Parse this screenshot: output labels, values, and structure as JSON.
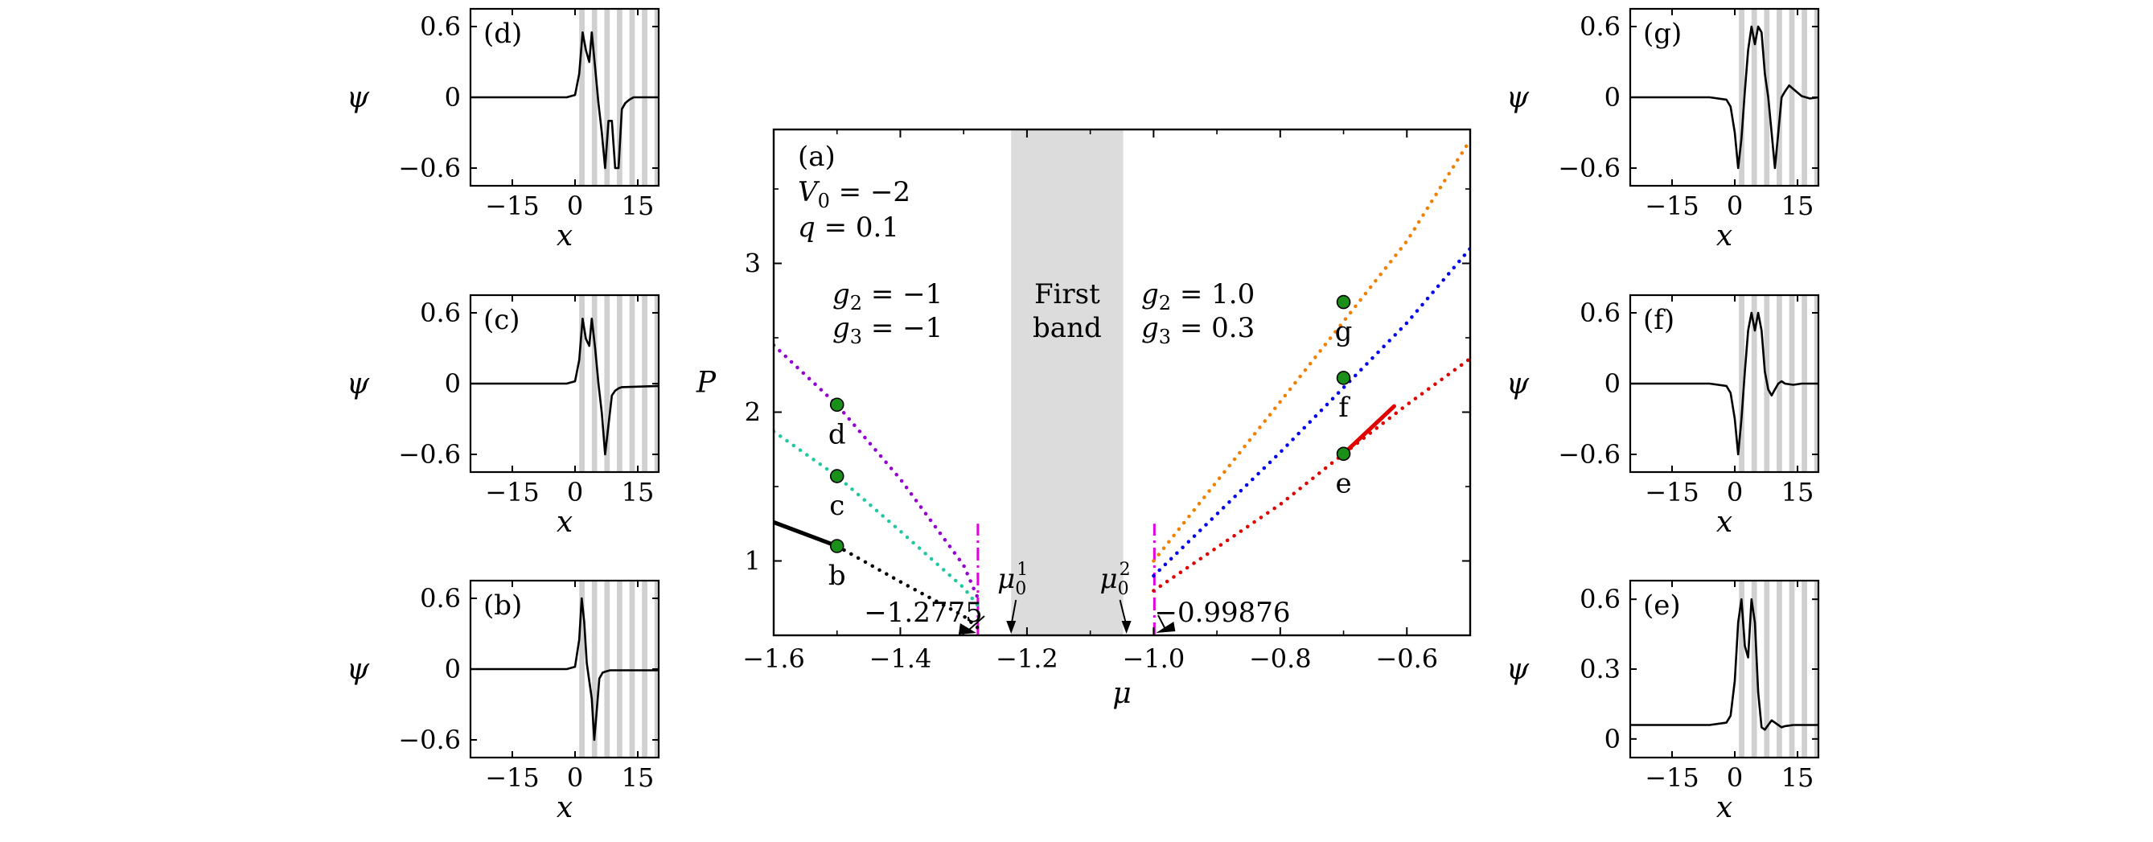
{
  "colors": {
    "purple": "#9400d3",
    "teal": "#1fc8a0",
    "black": "#000000",
    "orange": "#f08000",
    "blue": "#0000ee",
    "red": "#e00000",
    "magenta": "#e000e0",
    "dot_fill": "#1a8f1a",
    "band_fill": "#dcdcdc",
    "stripe_fill": "#d0d0d0"
  },
  "chart_data": [
    {
      "id": "a",
      "type": "line",
      "panel_label": "(a)",
      "xlabel": "μ",
      "ylabel": "P",
      "xlim": [
        -1.6,
        -0.5
      ],
      "ylim": [
        0.5,
        3.9
      ],
      "xticks": [
        -1.6,
        -1.4,
        -1.2,
        -1.0,
        -0.8,
        -0.6
      ],
      "xtick_labels": [
        "−1.6",
        "−1.4",
        "−1.2",
        "−1.0",
        "−0.8",
        "−0.6"
      ],
      "yticks": [
        1,
        2,
        3
      ],
      "ytick_labels": [
        "1",
        "2",
        "3"
      ],
      "params": {
        "v0": "V0 = −2",
        "v0_sym": "V",
        "v0_sub": "0",
        "v0_rest": " = −2",
        "q": "q = 0.1",
        "q_sym": "q",
        "q_rest": " = 0.1"
      },
      "left_params": {
        "g2_sym": "g",
        "g2_sub": "2",
        "g2_rest": " = −1",
        "g3_sym": "g",
        "g3_sub": "3",
        "g3_rest": " = −1"
      },
      "right_params": {
        "g2_sym": "g",
        "g2_sub": "2",
        "g2_rest": " = 1.0",
        "g3_sym": "g",
        "g3_sub": "3",
        "g3_rest": " = 0.3"
      },
      "first_band": {
        "label_line1": "First",
        "label_line2": "band",
        "range": [
          -1.225,
          -1.048
        ]
      },
      "edges": {
        "left": -1.2775,
        "right": -0.99876,
        "left_label": "−1.2775",
        "right_label": "−0.99876"
      },
      "mu0": [
        {
          "sym": "μ",
          "sub": "0",
          "sup": "1",
          "x": -1.225
        },
        {
          "sym": "μ",
          "sub": "0",
          "sup": "2",
          "x": -1.048
        }
      ],
      "series": [
        {
          "color": "purple",
          "style": "dotted",
          "x": [
            -1.6,
            -1.5,
            -1.4,
            -1.3,
            -1.2775
          ],
          "y": [
            2.45,
            2.05,
            1.55,
            0.97,
            0.75
          ]
        },
        {
          "color": "teal",
          "style": "dotted",
          "x": [
            -1.6,
            -1.5,
            -1.4,
            -1.3,
            -1.2775
          ],
          "y": [
            1.87,
            1.57,
            1.2,
            0.82,
            0.7
          ]
        },
        {
          "color": "black",
          "style": "solid",
          "x": [
            -1.6,
            -1.5
          ],
          "y": [
            1.26,
            1.1
          ]
        },
        {
          "color": "black",
          "style": "dotted",
          "x": [
            -1.5,
            -1.4,
            -1.3,
            -1.2775
          ],
          "y": [
            1.1,
            0.86,
            0.63,
            0.55
          ]
        },
        {
          "color": "orange",
          "style": "dotted",
          "x": [
            -1.0,
            -0.8,
            -0.6,
            -0.5
          ],
          "y": [
            1.0,
            2.07,
            3.15,
            3.83
          ]
        },
        {
          "color": "blue",
          "style": "dotted",
          "x": [
            -1.0,
            -0.8,
            -0.6,
            -0.5
          ],
          "y": [
            0.9,
            1.73,
            2.6,
            3.1
          ]
        },
        {
          "color": "red",
          "style": "dotted",
          "x": [
            -1.0,
            -0.8,
            -0.7,
            -0.6,
            -0.5
          ],
          "y": [
            0.8,
            1.38,
            1.72,
            2.05,
            2.36
          ]
        },
        {
          "color": "red",
          "style": "solid",
          "x": [
            -0.7,
            -0.62
          ],
          "y": [
            1.72,
            2.04
          ]
        }
      ],
      "points": [
        {
          "label": "d",
          "x": -1.5,
          "y": 2.05
        },
        {
          "label": "c",
          "x": -1.5,
          "y": 1.57
        },
        {
          "label": "b",
          "x": -1.5,
          "y": 1.1
        },
        {
          "label": "g",
          "x": -0.7,
          "y": 2.74
        },
        {
          "label": "f",
          "x": -0.7,
          "y": 2.23
        },
        {
          "label": "e",
          "x": -0.7,
          "y": 1.72
        }
      ]
    },
    {
      "id": "d",
      "type": "line",
      "panel_label": "(d)",
      "xlabel": "x",
      "ylabel": "ψ",
      "xlim": [
        -25,
        20
      ],
      "ylim": [
        -0.75,
        0.75
      ],
      "xticks": [
        -15,
        0,
        15
      ],
      "xtick_labels": [
        "−15",
        "0",
        "15"
      ],
      "yticks": [
        -0.6,
        0,
        0.6
      ],
      "ytick_labels": [
        "−0.6",
        "0",
        "0.6"
      ],
      "x": [
        -25,
        -2,
        0,
        1,
        1.8,
        2.6,
        3.4,
        4,
        4.8,
        5.6,
        6.4,
        7.2,
        8,
        8.8,
        9.6,
        10.4,
        11.2,
        12,
        13,
        14,
        20
      ],
      "y": [
        0,
        0,
        0.02,
        0.2,
        0.55,
        0.4,
        0.3,
        0.55,
        0.25,
        -0.05,
        -0.3,
        -0.6,
        -0.2,
        -0.2,
        -0.6,
        -0.6,
        -0.1,
        -0.05,
        -0.02,
        0,
        0
      ]
    },
    {
      "id": "c",
      "type": "line",
      "panel_label": "(c)",
      "xlabel": "x",
      "ylabel": "ψ",
      "xlim": [
        -25,
        20
      ],
      "ylim": [
        -0.75,
        0.75
      ],
      "xticks": [
        -15,
        0,
        15
      ],
      "xtick_labels": [
        "−15",
        "0",
        "15"
      ],
      "yticks": [
        -0.6,
        0,
        0.6
      ],
      "ytick_labels": [
        "−0.6",
        "0",
        "0.6"
      ],
      "x": [
        -25,
        -2,
        0,
        1,
        1.8,
        2.6,
        3.4,
        4,
        4.8,
        5.6,
        6.4,
        7.2,
        8,
        8.8,
        9.6,
        10.4,
        11.2,
        20
      ],
      "y": [
        0,
        0,
        0.02,
        0.2,
        0.55,
        0.38,
        0.32,
        0.55,
        0.3,
        0.0,
        -0.25,
        -0.6,
        -0.35,
        -0.1,
        -0.06,
        -0.04,
        -0.03,
        -0.02
      ]
    },
    {
      "id": "b",
      "type": "line",
      "panel_label": "(b)",
      "xlabel": "x",
      "ylabel": "ψ",
      "xlim": [
        -25,
        20
      ],
      "ylim": [
        -0.75,
        0.75
      ],
      "xticks": [
        -15,
        0,
        15
      ],
      "xtick_labels": [
        "−15",
        "0",
        "15"
      ],
      "yticks": [
        -0.6,
        0,
        0.6
      ],
      "ytick_labels": [
        "−0.6",
        "0",
        "0.6"
      ],
      "x": [
        -25,
        -2,
        0,
        1,
        1.6,
        2.2,
        2.8,
        3.4,
        4,
        4.6,
        5.2,
        5.8,
        6.6,
        7.4,
        8.4,
        20
      ],
      "y": [
        0,
        0,
        0.02,
        0.25,
        0.6,
        0.4,
        0.05,
        -0.1,
        -0.25,
        -0.6,
        -0.35,
        -0.08,
        -0.03,
        -0.02,
        -0.01,
        -0.01
      ]
    },
    {
      "id": "g",
      "type": "line",
      "panel_label": "(g)",
      "xlabel": "x",
      "ylabel": "ψ",
      "xlim": [
        -25,
        20
      ],
      "ylim": [
        -0.75,
        0.75
      ],
      "xticks": [
        -15,
        0,
        15
      ],
      "xtick_labels": [
        "−15",
        "0",
        "15"
      ],
      "yticks": [
        -0.6,
        0,
        0.6
      ],
      "ytick_labels": [
        "−0.6",
        "0",
        "0.6"
      ],
      "x": [
        -25,
        -6,
        -2,
        -1,
        0,
        0.8,
        1.6,
        2.4,
        3.2,
        4,
        4.8,
        5.6,
        6.4,
        7.2,
        8,
        8.8,
        9.6,
        10.4,
        11.2,
        12,
        13,
        14,
        16,
        18,
        20
      ],
      "y": [
        0,
        0,
        -0.02,
        -0.08,
        -0.3,
        -0.6,
        -0.35,
        0.05,
        0.4,
        0.6,
        0.45,
        0.6,
        0.55,
        0.2,
        0.0,
        -0.3,
        -0.6,
        -0.3,
        0.0,
        0.05,
        0.1,
        0.07,
        0.01,
        -0.01,
        0
      ]
    },
    {
      "id": "f",
      "type": "line",
      "panel_label": "(f)",
      "xlabel": "x",
      "ylabel": "ψ",
      "xlim": [
        -25,
        20
      ],
      "ylim": [
        -0.75,
        0.75
      ],
      "xticks": [
        -15,
        0,
        15
      ],
      "xtick_labels": [
        "−15",
        "0",
        "15"
      ],
      "yticks": [
        -0.6,
        0,
        0.6
      ],
      "ytick_labels": [
        "−0.6",
        "0",
        "0.6"
      ],
      "x": [
        -25,
        -6,
        -2,
        -1,
        0,
        0.8,
        1.6,
        2.4,
        3.2,
        4,
        4.8,
        5.6,
        6.4,
        7.2,
        8,
        8.8,
        9.6,
        10.4,
        11.2,
        12,
        14,
        16,
        20
      ],
      "y": [
        0,
        0,
        -0.02,
        -0.08,
        -0.3,
        -0.6,
        -0.3,
        0.1,
        0.45,
        0.6,
        0.45,
        0.6,
        0.45,
        0.1,
        -0.05,
        -0.1,
        -0.05,
        0.0,
        0.02,
        0.0,
        -0.01,
        0,
        0
      ]
    },
    {
      "id": "e",
      "type": "line",
      "panel_label": "(e)",
      "xlabel": "x",
      "ylabel": "ψ",
      "xlim": [
        -25,
        20
      ],
      "ylim": [
        -0.08,
        0.68
      ],
      "xticks": [
        -15,
        0,
        15
      ],
      "xtick_labels": [
        "−15",
        "0",
        "15"
      ],
      "yticks": [
        0,
        0.3,
        0.6
      ],
      "ytick_labels": [
        "0",
        "0.3",
        "0.6"
      ],
      "x": [
        -25,
        -6,
        -2,
        -1,
        0,
        0.8,
        1.6,
        2.4,
        3.2,
        4,
        4.8,
        5.6,
        6.4,
        7.2,
        8,
        8.8,
        9.6,
        10.4,
        11.2,
        12,
        14,
        20
      ],
      "y": [
        0.06,
        0.06,
        0.07,
        0.1,
        0.25,
        0.5,
        0.6,
        0.4,
        0.35,
        0.6,
        0.5,
        0.2,
        0.05,
        0.04,
        0.06,
        0.08,
        0.07,
        0.06,
        0.05,
        0.055,
        0.06,
        0.06
      ]
    }
  ]
}
